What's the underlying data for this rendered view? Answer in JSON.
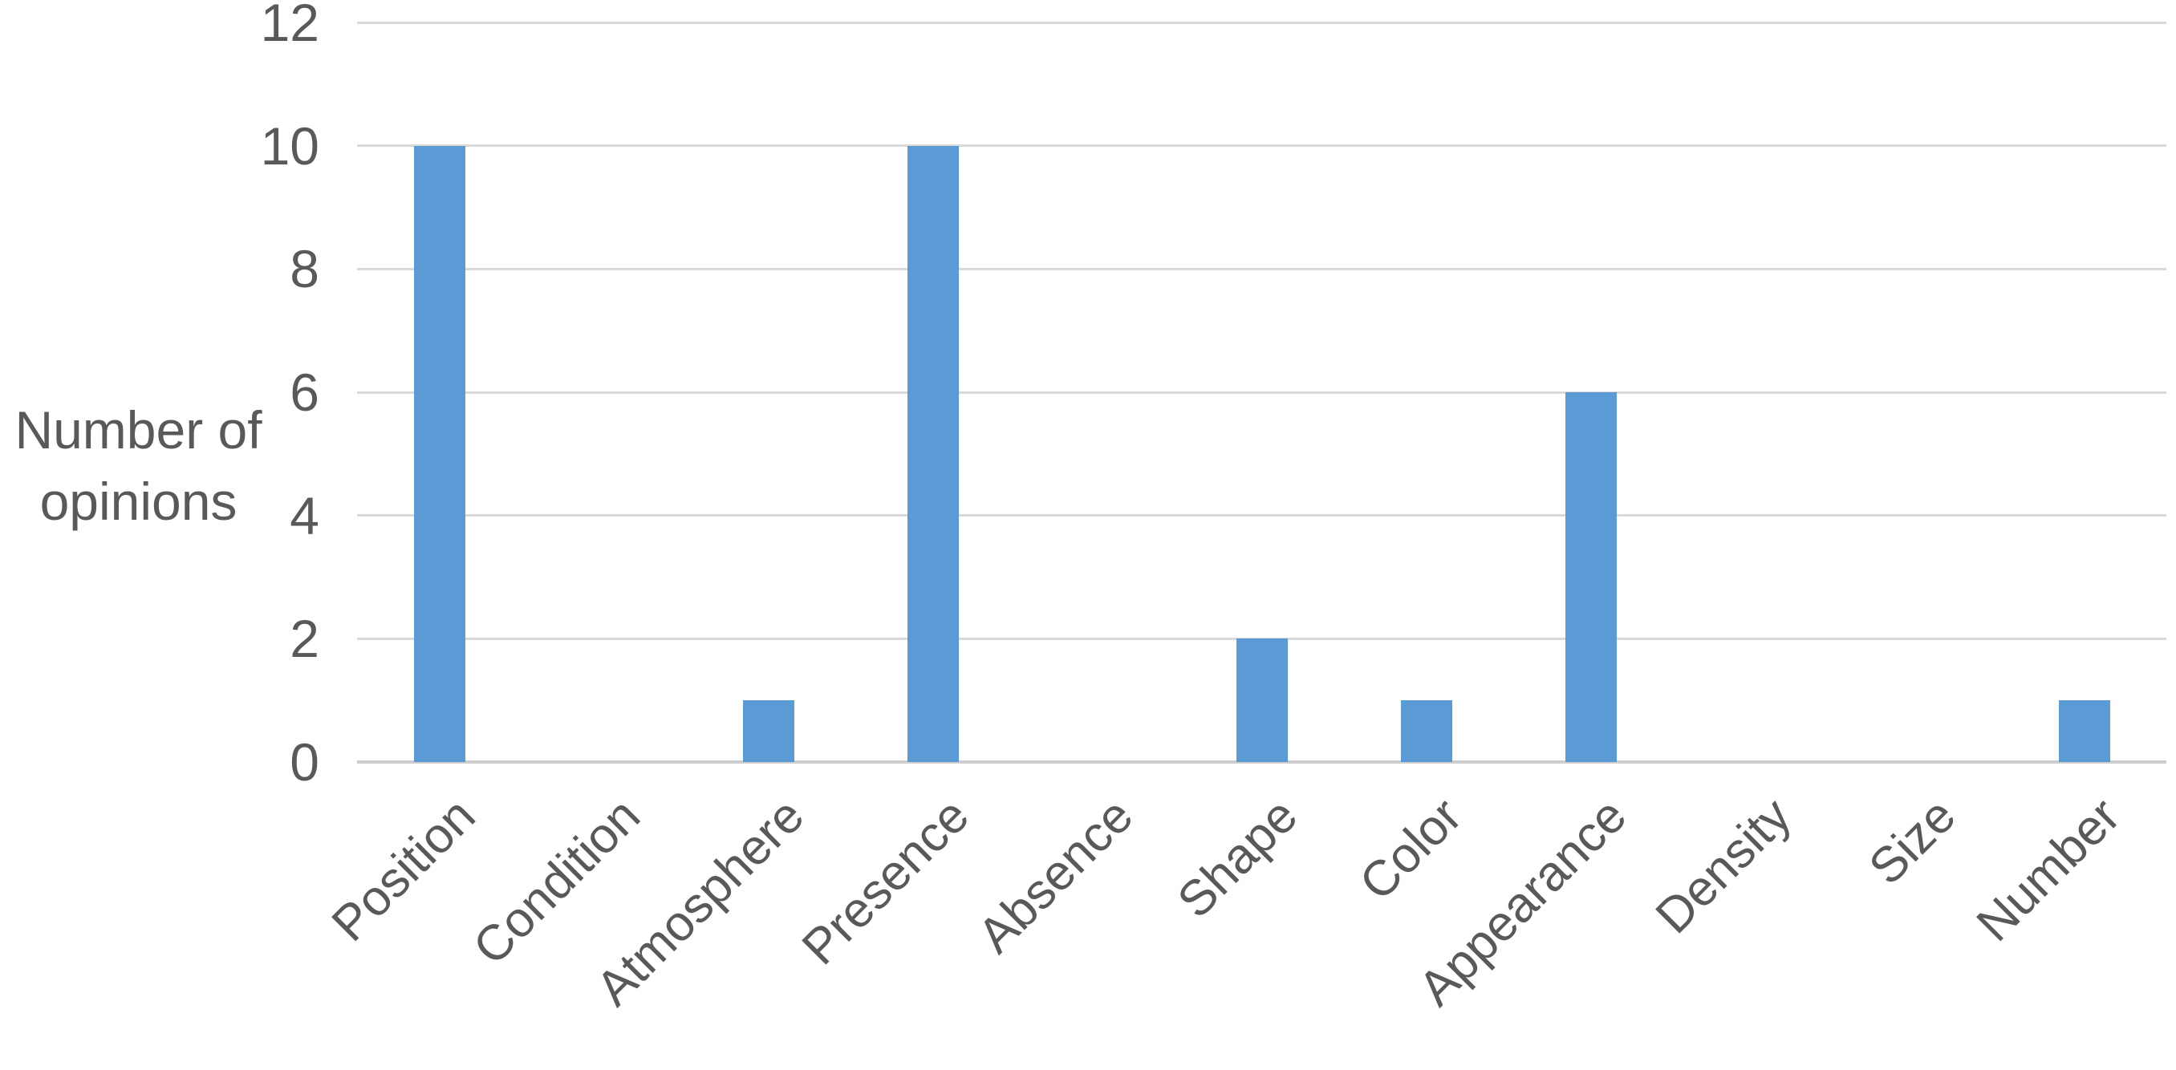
{
  "chart_data": {
    "type": "bar",
    "title": "",
    "categories": [
      "Position",
      "Condition",
      "Atmosphere",
      "Presence",
      "Absence",
      "Shape",
      "Color",
      "Appearance",
      "Density",
      "Size",
      "Number"
    ],
    "values": [
      10,
      0,
      1,
      10,
      0,
      2,
      1,
      6,
      0,
      0,
      1
    ],
    "xlabel": "",
    "ylabel": "Number of opinions",
    "ylabel_lines": [
      "Number of",
      "opinions"
    ],
    "y_ticks": [
      0,
      2,
      4,
      6,
      8,
      10,
      12
    ],
    "ylim": [
      0,
      12
    ],
    "grid": "horizontal-major",
    "legend_position": "none",
    "x_label_rotation_deg": 45,
    "colors": {
      "bar": "#5B9BD5",
      "gridline": "#D9D9D9",
      "axis_line": "#CDCDCD",
      "text": "#595959",
      "background": "#FFFFFF"
    }
  }
}
